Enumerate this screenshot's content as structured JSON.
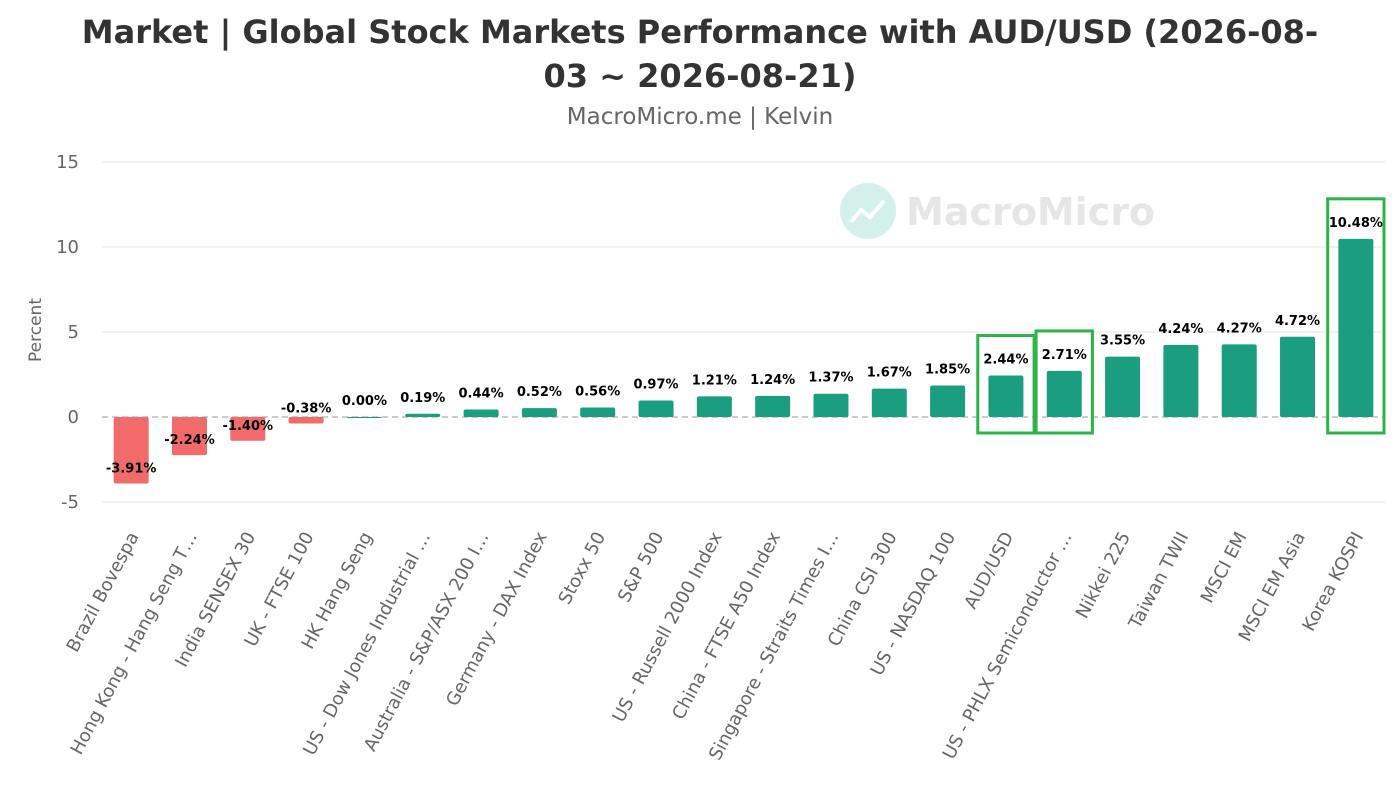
{
  "title": "Market | Global Stock Markets Performance with AUD/USD (2026-08-03 ~ 2026-08-21)",
  "subtitle": "MacroMicro.me | Kelvin",
  "watermark": "MacroMicro",
  "colors": {
    "positive": "#1a9e7f",
    "negative": "#f26b6b",
    "highlight": "#2db34a",
    "grid": "#e6e6e6"
  },
  "chart_data": {
    "type": "bar",
    "title": "Market | Global Stock Markets Performance with AUD/USD (2026-08-03 ~ 2026-08-21)",
    "subtitle": "MacroMicro.me | Kelvin",
    "ylabel": "Percent",
    "xlabel": "",
    "ylim": [
      -5,
      15
    ],
    "yticks": [
      15,
      10,
      5,
      0,
      -5
    ],
    "grid": true,
    "categories": [
      "Brazil Bovespa",
      "Hong Kong - Hang Seng T…",
      "India SENSEX 30",
      "UK - FTSE 100",
      "HK Hang Seng",
      "US - Dow Jones Industrial …",
      "Australia - S&P/ASX 200 I…",
      "Germany - DAX Index",
      "Stoxx 50",
      "S&P 500",
      "US - Russell 2000 Index",
      "China - FTSE A50 Index",
      "Singapore - Straits Times I…",
      "China CSI 300",
      "US - NASDAQ 100",
      "AUD/USD",
      "US - PHLX Semiconductor …",
      "Nikkei 225",
      "Taiwan TWII",
      "MSCI EM",
      "MSCI EM Asia",
      "Korea KOSPI"
    ],
    "values": [
      -3.91,
      -2.24,
      -1.4,
      -0.38,
      0.0,
      0.19,
      0.44,
      0.52,
      0.56,
      0.97,
      1.21,
      1.24,
      1.37,
      1.67,
      1.85,
      2.44,
      2.71,
      3.55,
      4.24,
      4.27,
      4.72,
      10.48
    ],
    "data_labels": [
      "-3.91%",
      "-2.24%",
      "-1.40%",
      "-0.38%",
      "0.00%",
      "0.19%",
      "0.44%",
      "0.52%",
      "0.56%",
      "0.97%",
      "1.21%",
      "1.24%",
      "1.37%",
      "1.67%",
      "1.85%",
      "2.44%",
      "2.71%",
      "3.55%",
      "4.24%",
      "4.27%",
      "4.72%",
      "10.48%"
    ],
    "highlighted": [
      "AUD/USD",
      "US - PHLX Semiconductor …",
      "Korea KOSPI"
    ]
  }
}
